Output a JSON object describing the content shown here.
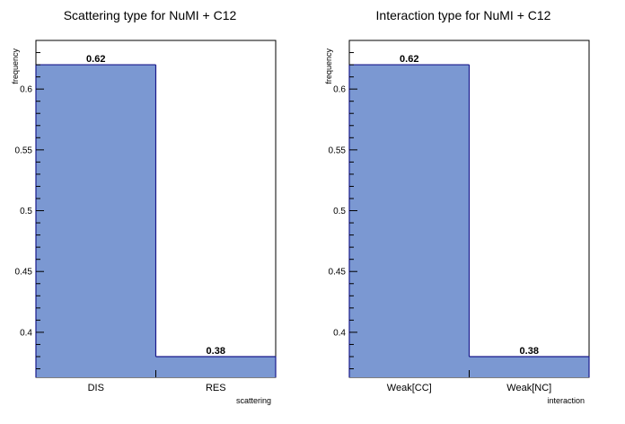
{
  "chart_data": [
    {
      "type": "bar",
      "title": "Scattering type for NuMI + C12",
      "xlabel": "scattering",
      "ylabel": "frequency",
      "categories": [
        "DIS",
        "RES"
      ],
      "values": [
        0.62,
        0.38
      ],
      "data_labels": [
        "0.62",
        "0.38"
      ],
      "y_ticks": [
        "0.4",
        "0.45",
        "0.5",
        "0.55",
        "0.6"
      ],
      "ylim": [
        0.363,
        0.64
      ],
      "grid": false,
      "bar_color": "#7b98d2",
      "bar_edge_color": "#1a1a8c"
    },
    {
      "type": "bar",
      "title": "Interaction type for NuMI + C12",
      "xlabel": "interaction",
      "ylabel": "frequency",
      "categories": [
        "Weak[CC]",
        "Weak[NC]"
      ],
      "values": [
        0.62,
        0.38
      ],
      "data_labels": [
        "0.62",
        "0.38"
      ],
      "y_ticks": [
        "0.4",
        "0.45",
        "0.5",
        "0.55",
        "0.6"
      ],
      "ylim": [
        0.363,
        0.64
      ],
      "grid": false,
      "bar_color": "#7b98d2",
      "bar_edge_color": "#1a1a8c"
    }
  ]
}
